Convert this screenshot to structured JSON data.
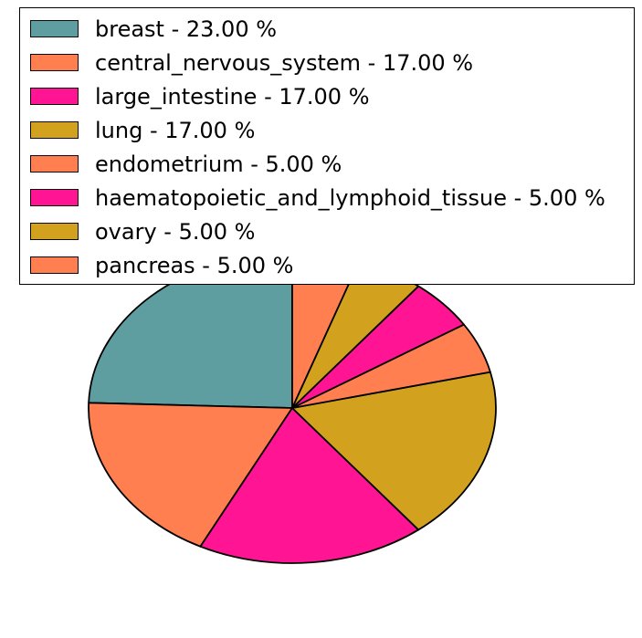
{
  "chart_data": {
    "type": "pie",
    "title": "",
    "categories": [
      "breast",
      "central_nervous_system",
      "large_intestine",
      "lung",
      "endometrium",
      "haematopoietic_and_lymphoid_tissue",
      "ovary",
      "pancreas"
    ],
    "values": [
      23.0,
      17.0,
      17.0,
      17.0,
      5.0,
      5.0,
      5.0,
      5.0
    ],
    "unit": "%",
    "legend_labels": [
      "breast - 23.00 %",
      "central_nervous_system - 17.00 %",
      "large_intestine - 17.00 %",
      "lung - 17.00 %",
      "endometrium - 5.00 %",
      "haematopoietic_and_lymphoid_tissue - 5.00 %",
      "ovary - 5.00 %",
      "pancreas - 5.00 %"
    ],
    "colors": [
      "#5F9EA0",
      "#FF7F50",
      "#FF1493",
      "#D2A21F",
      "#FF7F50",
      "#FF1493",
      "#D2A21F",
      "#FF7F50"
    ],
    "wedge_edge_color": "#000000",
    "start_angle": 90,
    "direction": "counterclockwise",
    "legend_position": "upper left",
    "background": "#ffffff"
  }
}
